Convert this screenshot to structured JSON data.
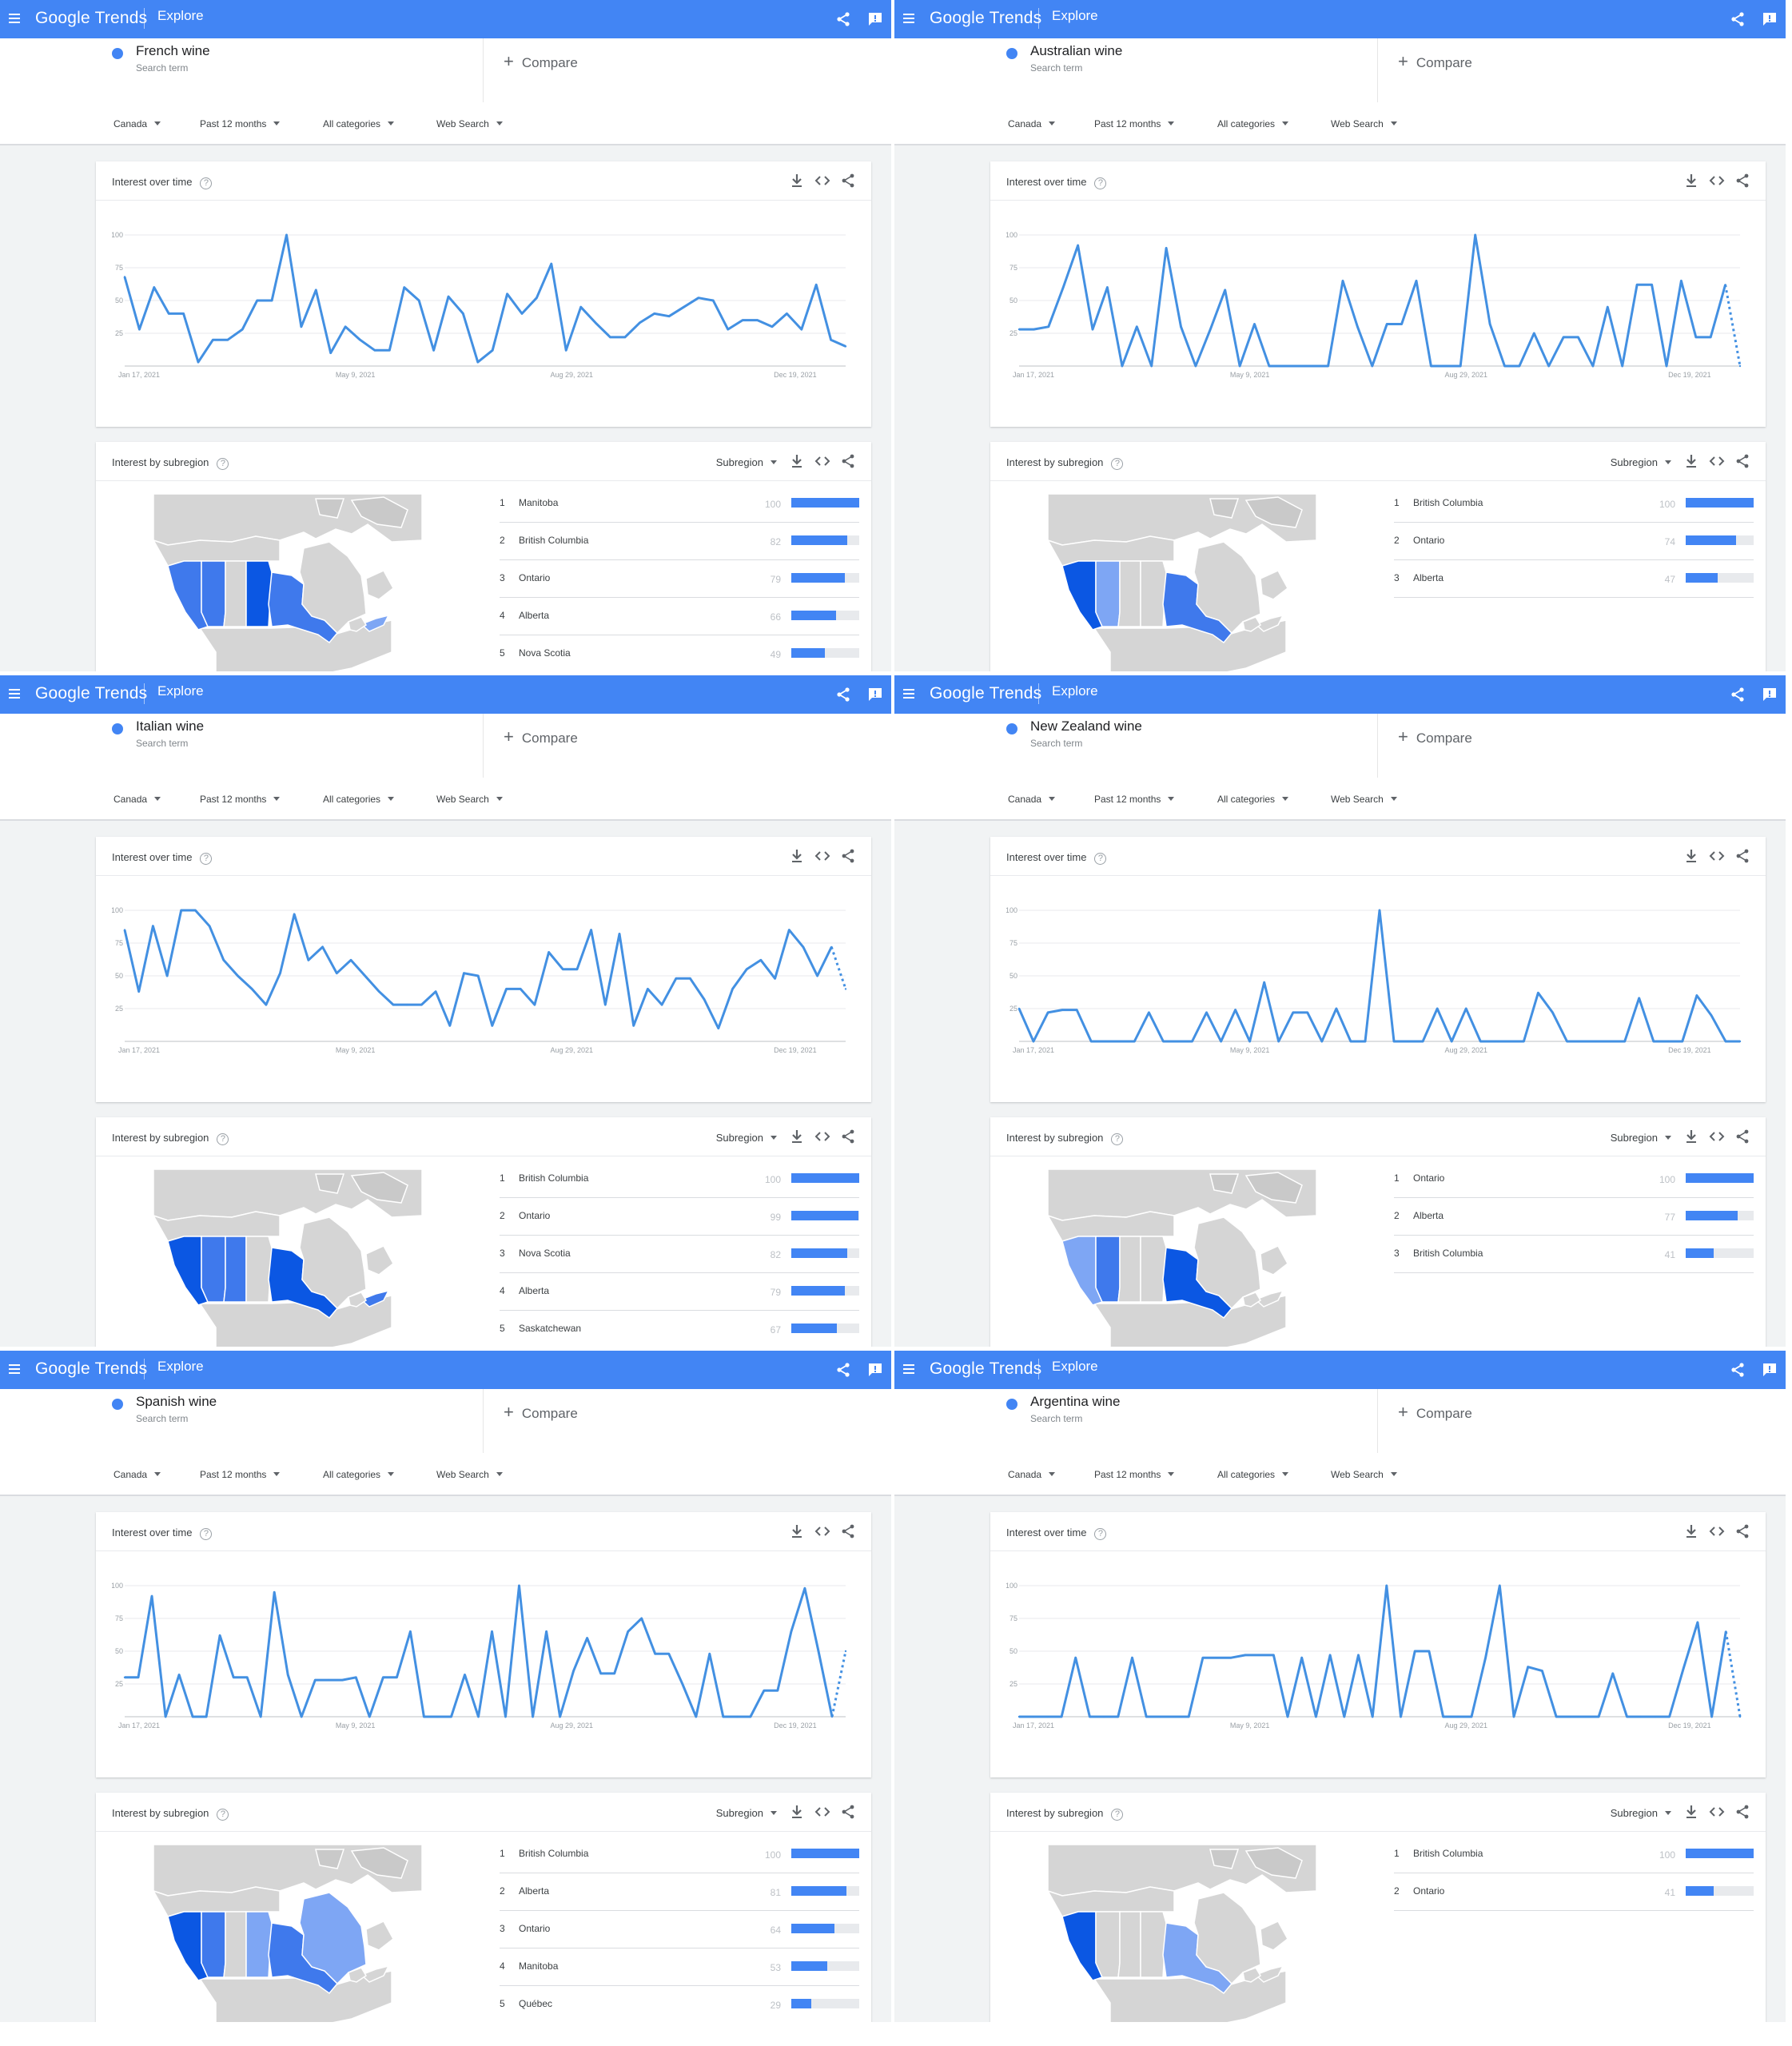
{
  "app": {
    "brand": "Google Trends",
    "page_label": "Explore"
  },
  "common": {
    "search_term_kind": "Search term",
    "compare_label": "Compare",
    "filters": {
      "geo": "Canada",
      "time": "Past 12 months",
      "category": "All categories",
      "property": "Web Search"
    },
    "interest_over_time_title": "Interest over time",
    "interest_by_subregion_title": "Interest by subregion",
    "subregion_selector": "Subregion",
    "help_glyph": "?"
  },
  "theme": {
    "accent": "#4285f4",
    "line": "#4390e2",
    "map_land": "#d5d5d5",
    "map_shades": [
      "#0b57e3",
      "#3f79ec",
      "#7ea6f4"
    ]
  },
  "icons": {
    "menu": "menu-icon",
    "share": "share-icon",
    "feedback": "feedback-icon",
    "download": "download-icon",
    "embed": "embed-icon",
    "help": "help-icon",
    "dropdown": "caret-down-icon"
  },
  "screens": [
    {
      "term": "French wine",
      "chart_data": {
        "type": "line",
        "x_tick_labels": [
          "Jan 17, 2021",
          "May 9, 2021",
          "Aug 29, 2021",
          "Dec 19, 2021"
        ],
        "y_tick_labels": [
          "100",
          "75",
          "50",
          "25"
        ],
        "ylim": [
          0,
          100
        ],
        "grid": true,
        "partial_last_point": false,
        "series": [
          {
            "values": [
              68,
              28,
              60,
              40,
              40,
              3,
              20,
              20,
              28,
              50,
              50,
              100,
              30,
              58,
              10,
              30,
              20,
              12,
              12,
              60,
              50,
              12,
              53,
              40,
              3,
              12,
              55,
              40,
              52,
              78,
              12,
              45,
              33,
              22,
              22,
              33,
              40,
              38,
              45,
              52,
              50,
              28,
              35,
              35,
              30,
              40,
              28,
              62,
              20,
              15
            ]
          }
        ]
      },
      "regions": [
        {
          "rank": "1",
          "name": "Manitoba",
          "value": 100
        },
        {
          "rank": "2",
          "name": "British Columbia",
          "value": 82
        },
        {
          "rank": "3",
          "name": "Ontario",
          "value": 79
        },
        {
          "rank": "4",
          "name": "Alberta",
          "value": 66
        },
        {
          "rank": "5",
          "name": "Nova Scotia",
          "value": 49
        }
      ]
    },
    {
      "term": "Australian wine",
      "chart_data": {
        "type": "line",
        "x_tick_labels": [
          "Jan 17, 2021",
          "May 9, 2021",
          "Aug 29, 2021",
          "Dec 19, 2021"
        ],
        "y_tick_labels": [
          "100",
          "75",
          "50",
          "25"
        ],
        "ylim": [
          0,
          100
        ],
        "grid": true,
        "partial_last_point": true,
        "series": [
          {
            "values": [
              28,
              28,
              30,
              60,
              92,
              28,
              60,
              0,
              30,
              0,
              90,
              30,
              0,
              28,
              58,
              0,
              32,
              0,
              0,
              0,
              0,
              0,
              65,
              30,
              0,
              32,
              32,
              65,
              0,
              0,
              0,
              100,
              32,
              0,
              0,
              25,
              0,
              22,
              22,
              0,
              45,
              0,
              62,
              62,
              0,
              65,
              22,
              22,
              62,
              0
            ]
          }
        ]
      },
      "regions": [
        {
          "rank": "1",
          "name": "British Columbia",
          "value": 100
        },
        {
          "rank": "2",
          "name": "Ontario",
          "value": 74
        },
        {
          "rank": "3",
          "name": "Alberta",
          "value": 47
        }
      ]
    },
    {
      "term": "Italian wine",
      "chart_data": {
        "type": "line",
        "x_tick_labels": [
          "Jan 17, 2021",
          "May 9, 2021",
          "Aug 29, 2021",
          "Dec 19, 2021"
        ],
        "y_tick_labels": [
          "100",
          "75",
          "50",
          "25"
        ],
        "ylim": [
          0,
          100
        ],
        "grid": true,
        "partial_last_point": true,
        "series": [
          {
            "values": [
              85,
              38,
              88,
              50,
              100,
              100,
              88,
              62,
              50,
              40,
              28,
              52,
              97,
              62,
              72,
              52,
              62,
              50,
              38,
              28,
              28,
              28,
              38,
              12,
              52,
              50,
              12,
              40,
              40,
              28,
              68,
              55,
              55,
              85,
              28,
              82,
              12,
              40,
              28,
              48,
              48,
              32,
              10,
              40,
              55,
              62,
              48,
              85,
              72,
              50,
              72,
              40
            ]
          }
        ]
      },
      "regions": [
        {
          "rank": "1",
          "name": "British Columbia",
          "value": 100
        },
        {
          "rank": "2",
          "name": "Ontario",
          "value": 99
        },
        {
          "rank": "3",
          "name": "Nova Scotia",
          "value": 82
        },
        {
          "rank": "4",
          "name": "Alberta",
          "value": 79
        },
        {
          "rank": "5",
          "name": "Saskatchewan",
          "value": 67
        }
      ]
    },
    {
      "term": "New Zealand wine",
      "chart_data": {
        "type": "line",
        "x_tick_labels": [
          "Jan 17, 2021",
          "May 9, 2021",
          "Aug 29, 2021",
          "Dec 19, 2021"
        ],
        "y_tick_labels": [
          "100",
          "75",
          "50",
          "25"
        ],
        "ylim": [
          0,
          100
        ],
        "grid": true,
        "partial_last_point": false,
        "series": [
          {
            "values": [
              25,
              0,
              22,
              24,
              24,
              0,
              0,
              0,
              0,
              22,
              0,
              0,
              0,
              22,
              0,
              24,
              0,
              45,
              0,
              22,
              22,
              0,
              25,
              0,
              0,
              100,
              0,
              0,
              0,
              25,
              0,
              25,
              0,
              0,
              0,
              0,
              37,
              22,
              0,
              0,
              0,
              0,
              0,
              33,
              0,
              0,
              0,
              35,
              20,
              0,
              0
            ]
          }
        ]
      },
      "regions": [
        {
          "rank": "1",
          "name": "Ontario",
          "value": 100
        },
        {
          "rank": "2",
          "name": "Alberta",
          "value": 77
        },
        {
          "rank": "3",
          "name": "British Columbia",
          "value": 41
        }
      ]
    },
    {
      "term": "Spanish wine",
      "chart_data": {
        "type": "line",
        "x_tick_labels": [
          "Jan 17, 2021",
          "May 9, 2021",
          "Aug 29, 2021",
          "Dec 19, 2021"
        ],
        "y_tick_labels": [
          "100",
          "75",
          "50",
          "25"
        ],
        "ylim": [
          0,
          100
        ],
        "grid": true,
        "partial_last_point": true,
        "series": [
          {
            "values": [
              30,
              30,
              92,
              0,
              32,
              0,
              0,
              62,
              30,
              30,
              0,
              95,
              32,
              0,
              28,
              28,
              28,
              30,
              0,
              30,
              30,
              65,
              0,
              0,
              0,
              32,
              0,
              65,
              0,
              100,
              0,
              65,
              0,
              35,
              60,
              33,
              33,
              65,
              75,
              48,
              48,
              25,
              0,
              48,
              0,
              0,
              0,
              20,
              20,
              65,
              98,
              50,
              0,
              50
            ]
          }
        ]
      },
      "regions": [
        {
          "rank": "1",
          "name": "British Columbia",
          "value": 100
        },
        {
          "rank": "2",
          "name": "Alberta",
          "value": 81
        },
        {
          "rank": "3",
          "name": "Ontario",
          "value": 64
        },
        {
          "rank": "4",
          "name": "Manitoba",
          "value": 53
        },
        {
          "rank": "5",
          "name": "Québec",
          "value": 29
        }
      ]
    },
    {
      "term": "Argentina wine",
      "chart_data": {
        "type": "line",
        "x_tick_labels": [
          "Jan 17, 2021",
          "May 9, 2021",
          "Aug 29, 2021",
          "Dec 19, 2021"
        ],
        "y_tick_labels": [
          "100",
          "75",
          "50",
          "25"
        ],
        "ylim": [
          0,
          100
        ],
        "grid": true,
        "partial_last_point": true,
        "series": [
          {
            "values": [
              0,
              0,
              0,
              0,
              45,
              0,
              0,
              0,
              45,
              0,
              0,
              0,
              0,
              45,
              45,
              45,
              47,
              47,
              47,
              0,
              45,
              0,
              47,
              0,
              47,
              0,
              100,
              0,
              50,
              50,
              0,
              0,
              0,
              45,
              100,
              0,
              38,
              35,
              0,
              0,
              0,
              0,
              33,
              0,
              0,
              0,
              0,
              37,
              72,
              0,
              65,
              0
            ]
          }
        ]
      },
      "regions": [
        {
          "rank": "1",
          "name": "British Columbia",
          "value": 100
        },
        {
          "rank": "2",
          "name": "Ontario",
          "value": 41
        }
      ]
    }
  ]
}
